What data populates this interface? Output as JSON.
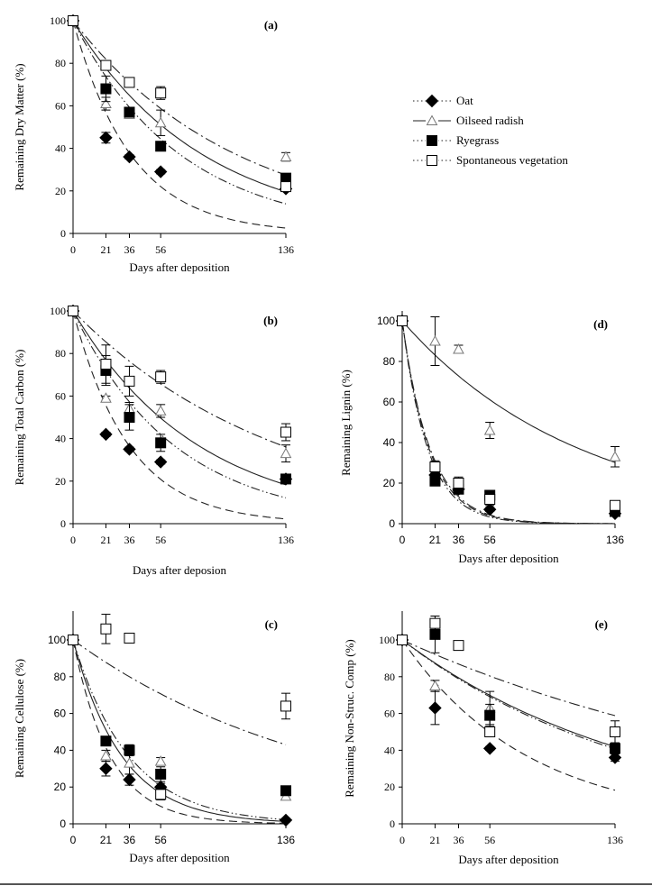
{
  "legend": {
    "entries": [
      {
        "name": "Oat",
        "marker": "diamond-filled",
        "line": "dashed"
      },
      {
        "name": "Oilseed radish",
        "marker": "triangle-open",
        "line": "solid"
      },
      {
        "name": "Ryegrass",
        "marker": "square-filled",
        "line": "dash-dot-dot"
      },
      {
        "name": "Spontaneous vegetation",
        "marker": "square-open",
        "line": "dash-dot"
      }
    ]
  },
  "chart_data": [
    {
      "id": "a",
      "type": "scatter",
      "panel_label": "(a)",
      "ylabel": "Remaining Dry Matter (%)",
      "xlabel": "Days after deposition",
      "x_ticks": [
        0,
        21,
        36,
        56,
        136
      ],
      "y_ticks": [
        0,
        20,
        40,
        60,
        80,
        100
      ],
      "xlim": [
        0,
        136
      ],
      "ylim": [
        0,
        100
      ],
      "series": [
        {
          "name": "Oat",
          "x": [
            0,
            21,
            36,
            56,
            136
          ],
          "y": [
            100,
            45,
            36,
            29,
            21
          ],
          "err": [
            0,
            2.5,
            1,
            1,
            1
          ],
          "fit_k": 0.027
        },
        {
          "name": "Oilseed radish",
          "x": [
            0,
            21,
            36,
            56,
            136
          ],
          "y": [
            100,
            61,
            56,
            52,
            36
          ],
          "err": [
            0,
            3,
            1,
            6,
            2
          ],
          "fit_k": 0.012
        },
        {
          "name": "Ryegrass",
          "x": [
            0,
            21,
            36,
            56,
            136
          ],
          "y": [
            100,
            68,
            57,
            41,
            26
          ],
          "err": [
            0,
            6,
            1,
            2,
            1
          ],
          "fit_k": 0.0145
        },
        {
          "name": "Spontaneous vegetation",
          "x": [
            0,
            21,
            36,
            56,
            136
          ],
          "y": [
            100,
            79,
            71,
            66,
            22
          ],
          "err": [
            0,
            1,
            0.5,
            3,
            2
          ],
          "fit_k": 0.0095
        }
      ]
    },
    {
      "id": "b",
      "type": "scatter",
      "panel_label": "(b)",
      "ylabel": "Remaining Total Carbon (%)",
      "xlabel": "Days after deposion",
      "x_ticks": [
        0,
        21,
        36,
        56,
        136
      ],
      "y_ticks": [
        0,
        20,
        40,
        60,
        80,
        100
      ],
      "xlim": [
        0,
        136
      ],
      "ylim": [
        0,
        100
      ],
      "series": [
        {
          "name": "Oat",
          "x": [
            0,
            21,
            36,
            56,
            136
          ],
          "y": [
            100,
            42,
            35,
            29,
            21
          ],
          "err": [
            0,
            1,
            1,
            1,
            1
          ],
          "fit_k": 0.028
        },
        {
          "name": "Oilseed radish",
          "x": [
            0,
            21,
            36,
            56,
            136
          ],
          "y": [
            100,
            59,
            54,
            53,
            33
          ],
          "err": [
            0,
            1,
            3,
            3,
            4
          ],
          "fit_k": 0.0125
        },
        {
          "name": "Ryegrass",
          "x": [
            0,
            21,
            36,
            56,
            136
          ],
          "y": [
            100,
            72,
            50,
            38,
            21
          ],
          "err": [
            0,
            7,
            6,
            4,
            1
          ],
          "fit_k": 0.0155
        },
        {
          "name": "Spontaneous vegetation",
          "x": [
            0,
            21,
            36,
            56,
            136
          ],
          "y": [
            100,
            75,
            67,
            69,
            43
          ],
          "err": [
            0,
            9,
            7,
            3,
            4
          ],
          "fit_k": 0.0075
        }
      ]
    },
    {
      "id": "d",
      "type": "scatter",
      "panel_label": "(d)",
      "ylabel": "Remaining Lignin (%)",
      "xlabel": "Days after deposition",
      "x_ticks": [
        0,
        21,
        36,
        56,
        136
      ],
      "y_ticks": [
        0,
        20,
        40,
        60,
        80,
        100
      ],
      "xlim": [
        0,
        136
      ],
      "ylim": [
        0,
        100
      ],
      "series": [
        {
          "name": "Oat",
          "x": [
            0,
            21,
            36,
            56,
            136
          ],
          "y": [
            100,
            24,
            17,
            7,
            5
          ],
          "err": [
            0,
            1,
            1,
            1,
            1
          ],
          "fit_k": 0.058
        },
        {
          "name": "Oilseed radish",
          "x": [
            0,
            21,
            36,
            56,
            136
          ],
          "y": [
            100,
            90,
            86,
            46,
            33
          ],
          "err": [
            0,
            12,
            2,
            4,
            5
          ],
          "fit_k": 0.0088
        },
        {
          "name": "Ryegrass",
          "x": [
            0,
            21,
            36,
            56,
            136
          ],
          "y": [
            100,
            21,
            17,
            14,
            6
          ],
          "err": [
            0,
            2,
            1,
            2,
            1
          ],
          "fit_k": 0.061
        },
        {
          "name": "Spontaneous vegetation",
          "x": [
            0,
            21,
            36,
            56,
            136
          ],
          "y": [
            100,
            28,
            20,
            12,
            9
          ],
          "err": [
            0,
            3,
            3,
            3,
            2
          ],
          "fit_k": 0.056
        }
      ]
    },
    {
      "id": "c",
      "type": "scatter",
      "panel_label": "(c)",
      "ylabel": "Remaining Cellulose (%)",
      "xlabel": "Days after deposition",
      "x_ticks": [
        0,
        21,
        36,
        56,
        136
      ],
      "y_ticks": [
        0,
        20,
        40,
        60,
        80,
        100
      ],
      "xlim": [
        0,
        136
      ],
      "ylim": [
        0,
        115
      ],
      "series": [
        {
          "name": "Oat",
          "x": [
            0,
            21,
            36,
            56,
            136
          ],
          "y": [
            100,
            30,
            24,
            20,
            2
          ],
          "err": [
            0,
            4,
            3,
            2,
            1
          ],
          "fit_k": 0.042
        },
        {
          "name": "Oilseed radish",
          "x": [
            0,
            21,
            36,
            56,
            136
          ],
          "y": [
            100,
            37,
            33,
            34,
            15
          ],
          "err": [
            0,
            3,
            6,
            2,
            2
          ],
          "fit_k": 0.032
        },
        {
          "name": "Ryegrass",
          "x": [
            0,
            21,
            36,
            56,
            136
          ],
          "y": [
            100,
            45,
            40,
            27,
            18
          ],
          "err": [
            0,
            1,
            3,
            4,
            1
          ],
          "fit_k": 0.028
        },
        {
          "name": "Spontaneous vegetation",
          "x": [
            0,
            21,
            36,
            56,
            136
          ],
          "y": [
            100,
            106,
            101,
            16,
            64
          ],
          "err": [
            0,
            8,
            1,
            3,
            7
          ],
          "fit_k": 0.0062
        }
      ]
    },
    {
      "id": "e",
      "type": "scatter",
      "panel_label": "(e)",
      "ylabel": "Remaining Non-Struc. Comp (%)",
      "xlabel": "Days after deposition",
      "x_ticks": [
        0,
        21,
        36,
        56,
        136
      ],
      "y_ticks": [
        0,
        20,
        40,
        60,
        80,
        100
      ],
      "xlim": [
        0,
        136
      ],
      "ylim": [
        0,
        115
      ],
      "series": [
        {
          "name": "Oat",
          "x": [
            0,
            21,
            56,
            136
          ],
          "y": [
            100,
            63,
            41,
            36
          ],
          "err": [
            0,
            9,
            1,
            2
          ],
          "fit_k": 0.0125
        },
        {
          "name": "Oilseed radish",
          "x": [
            0,
            21,
            56,
            136
          ],
          "y": [
            100,
            75,
            63,
            41
          ],
          "err": [
            0,
            3,
            9,
            3
          ],
          "fit_k": 0.0064
        },
        {
          "name": "Ryegrass",
          "x": [
            0,
            21,
            56,
            136
          ],
          "y": [
            100,
            103,
            59,
            41
          ],
          "err": [
            0,
            10,
            6,
            3
          ],
          "fit_k": 0.0066
        },
        {
          "name": "Spontaneous vegetation",
          "x": [
            0,
            21,
            36,
            56,
            136
          ],
          "y": [
            100,
            109,
            97,
            50,
            50
          ],
          "err": [
            0,
            4,
            0,
            0,
            6
          ],
          "fit_k": 0.0039
        }
      ]
    }
  ]
}
